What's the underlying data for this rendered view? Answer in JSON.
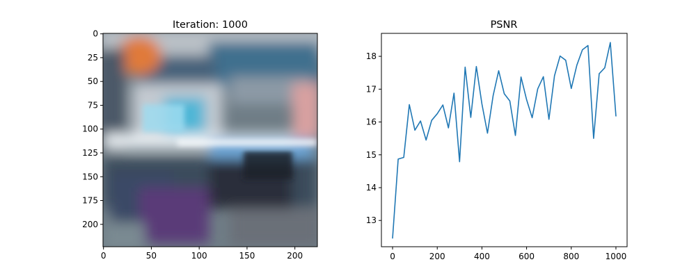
{
  "chart_data": [
    {
      "type": "image",
      "title": "Iteration: 1000",
      "xlim": [
        -0.5,
        223.5
      ],
      "ylim": [
        223.5,
        -0.5
      ],
      "xticks": [
        0,
        50,
        100,
        150,
        200
      ],
      "yticks": [
        0,
        25,
        50,
        75,
        100,
        125,
        150,
        175,
        200
      ],
      "xtick_labels": [
        "0",
        "50",
        "100",
        "150",
        "200"
      ],
      "ytick_labels": [
        "0",
        "25",
        "50",
        "75",
        "100",
        "125",
        "150",
        "175",
        "200"
      ],
      "colors": {
        "background": "#6f7d86",
        "orange_blob": "#e07a3a",
        "cyan_region": "#4fb6d6",
        "white_band": "#e8eef2",
        "dark_lower": "#2a2f3a",
        "purple_region": "#5a3a78",
        "blue_upper": "#3f6f8e"
      }
    },
    {
      "type": "line",
      "title": "PSNR",
      "xlim": [
        -50,
        1050
      ],
      "ylim": [
        12.2,
        18.7
      ],
      "xticks": [
        0,
        200,
        400,
        600,
        800,
        1000
      ],
      "yticks": [
        13,
        14,
        15,
        16,
        17,
        18
      ],
      "xtick_labels": [
        "0",
        "200",
        "400",
        "600",
        "800",
        "1000"
      ],
      "ytick_labels": [
        "13",
        "14",
        "15",
        "16",
        "17",
        "18"
      ],
      "line_color": "#1f77b4",
      "series": [
        {
          "x": [
            0,
            25,
            50,
            75,
            100,
            125,
            150,
            175,
            200,
            225,
            250,
            275,
            300,
            325,
            350,
            375,
            400,
            425,
            450,
            475,
            500,
            525,
            550,
            575,
            600,
            625,
            650,
            675,
            700,
            725,
            750,
            775,
            800,
            825,
            850,
            875,
            900,
            925,
            950,
            975,
            1000
          ],
          "values": [
            12.45,
            14.87,
            14.92,
            16.53,
            15.75,
            16.03,
            15.45,
            16.05,
            16.25,
            16.52,
            15.82,
            16.88,
            14.79,
            17.67,
            16.14,
            17.69,
            16.55,
            15.66,
            16.8,
            17.56,
            16.86,
            16.64,
            15.59,
            17.37,
            16.68,
            16.13,
            17.01,
            17.38,
            16.08,
            17.41,
            18.01,
            17.88,
            17.02,
            17.73,
            18.2,
            18.33,
            15.5,
            17.47,
            17.65,
            18.42,
            16.17
          ]
        }
      ]
    }
  ]
}
